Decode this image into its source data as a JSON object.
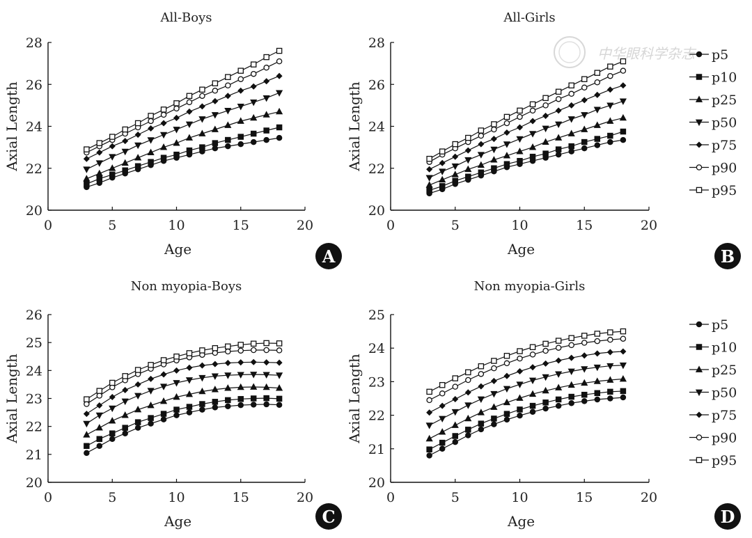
{
  "watermark": "中华眼科学杂志",
  "chart_data": [
    {
      "id": "A",
      "type": "line",
      "title": "All-Boys",
      "xlabel": "Age",
      "ylabel": "Axial Length",
      "xlim": [
        0,
        20
      ],
      "ylim": [
        20,
        28
      ],
      "xticks": [
        0,
        5,
        10,
        15,
        20
      ],
      "yticks": [
        20,
        22,
        24,
        26,
        28
      ],
      "x": [
        3,
        4,
        5,
        6,
        7,
        8,
        9,
        10,
        11,
        12,
        13,
        14,
        15,
        16,
        17,
        18
      ],
      "series": [
        {
          "name": "p5",
          "marker": "circle",
          "values": [
            21.1,
            21.3,
            21.55,
            21.75,
            21.95,
            22.15,
            22.35,
            22.5,
            22.65,
            22.8,
            22.95,
            23.05,
            23.15,
            23.25,
            23.35,
            23.45
          ]
        },
        {
          "name": "p10",
          "marker": "square",
          "values": [
            21.25,
            21.5,
            21.7,
            21.9,
            22.1,
            22.3,
            22.5,
            22.65,
            22.85,
            23.0,
            23.2,
            23.35,
            23.5,
            23.65,
            23.8,
            23.95
          ]
        },
        {
          "name": "p25",
          "marker": "triangle-up",
          "values": [
            21.5,
            21.75,
            22.0,
            22.25,
            22.5,
            22.75,
            23.0,
            23.2,
            23.45,
            23.65,
            23.85,
            24.05,
            24.25,
            24.4,
            24.55,
            24.7
          ]
        },
        {
          "name": "p50",
          "marker": "triangle-down",
          "values": [
            21.95,
            22.25,
            22.55,
            22.8,
            23.1,
            23.35,
            23.6,
            23.85,
            24.1,
            24.35,
            24.55,
            24.75,
            24.95,
            25.15,
            25.35,
            25.6
          ]
        },
        {
          "name": "p75",
          "marker": "diamond",
          "values": [
            22.45,
            22.75,
            23.05,
            23.3,
            23.6,
            23.9,
            24.15,
            24.4,
            24.7,
            24.95,
            25.2,
            25.45,
            25.7,
            25.9,
            26.15,
            26.4
          ]
        },
        {
          "name": "p90",
          "marker": "circle-open",
          "values": [
            22.75,
            23.05,
            23.35,
            23.65,
            23.95,
            24.25,
            24.55,
            24.85,
            25.15,
            25.45,
            25.7,
            25.95,
            26.25,
            26.5,
            26.8,
            27.1
          ]
        },
        {
          "name": "p95",
          "marker": "square-open",
          "values": [
            22.9,
            23.2,
            23.5,
            23.85,
            24.15,
            24.5,
            24.8,
            25.1,
            25.45,
            25.75,
            26.05,
            26.35,
            26.65,
            26.95,
            27.3,
            27.6
          ]
        }
      ]
    },
    {
      "id": "B",
      "type": "line",
      "title": "All-Girls",
      "xlabel": "Age",
      "ylabel": "Axial Length",
      "xlim": [
        0,
        20
      ],
      "ylim": [
        20,
        28
      ],
      "xticks": [
        0,
        5,
        10,
        15,
        20
      ],
      "yticks": [
        20,
        22,
        24,
        26,
        28
      ],
      "x": [
        3,
        4,
        5,
        6,
        7,
        8,
        9,
        10,
        11,
        12,
        13,
        14,
        15,
        16,
        17,
        18
      ],
      "series": [
        {
          "name": "p5",
          "marker": "circle",
          "values": [
            20.8,
            21.0,
            21.25,
            21.45,
            21.65,
            21.85,
            22.05,
            22.2,
            22.35,
            22.5,
            22.65,
            22.8,
            22.95,
            23.1,
            23.25,
            23.35
          ]
        },
        {
          "name": "p10",
          "marker": "square",
          "values": [
            20.95,
            21.15,
            21.4,
            21.6,
            21.8,
            22.0,
            22.2,
            22.35,
            22.55,
            22.7,
            22.9,
            23.05,
            23.25,
            23.4,
            23.55,
            23.75
          ]
        },
        {
          "name": "p25",
          "marker": "triangle-up",
          "values": [
            21.2,
            21.45,
            21.7,
            21.95,
            22.15,
            22.4,
            22.6,
            22.8,
            23.0,
            23.25,
            23.45,
            23.65,
            23.85,
            24.05,
            24.25,
            24.4
          ]
        },
        {
          "name": "p50",
          "marker": "triangle-down",
          "values": [
            21.55,
            21.85,
            22.1,
            22.4,
            22.65,
            22.9,
            23.15,
            23.4,
            23.65,
            23.9,
            24.1,
            24.35,
            24.55,
            24.8,
            25.0,
            25.2
          ]
        },
        {
          "name": "p75",
          "marker": "diamond",
          "values": [
            21.95,
            22.25,
            22.55,
            22.85,
            23.15,
            23.4,
            23.7,
            23.95,
            24.25,
            24.5,
            24.75,
            25.0,
            25.25,
            25.5,
            25.75,
            25.95
          ]
        },
        {
          "name": "p90",
          "marker": "circle-open",
          "values": [
            22.3,
            22.65,
            22.95,
            23.25,
            23.55,
            23.85,
            24.15,
            24.45,
            24.75,
            25.0,
            25.3,
            25.55,
            25.85,
            26.1,
            26.4,
            26.65
          ]
        },
        {
          "name": "p95",
          "marker": "square-open",
          "values": [
            22.45,
            22.8,
            23.15,
            23.45,
            23.8,
            24.1,
            24.45,
            24.75,
            25.05,
            25.35,
            25.65,
            25.95,
            26.25,
            26.55,
            26.85,
            27.1
          ]
        }
      ]
    },
    {
      "id": "C",
      "type": "line",
      "title": "Non myopia-Boys",
      "xlabel": "Age",
      "ylabel": "Axial Length",
      "xlim": [
        0,
        20
      ],
      "ylim": [
        20,
        26
      ],
      "xticks": [
        0,
        5,
        10,
        15,
        20
      ],
      "yticks": [
        20,
        21,
        22,
        23,
        24,
        25,
        26
      ],
      "x": [
        3,
        4,
        5,
        6,
        7,
        8,
        9,
        10,
        11,
        12,
        13,
        14,
        15,
        16,
        17,
        18
      ],
      "series": [
        {
          "name": "p5",
          "marker": "circle",
          "values": [
            21.05,
            21.3,
            21.55,
            21.75,
            21.95,
            22.1,
            22.25,
            22.4,
            22.5,
            22.6,
            22.68,
            22.72,
            22.76,
            22.78,
            22.79,
            22.77
          ]
        },
        {
          "name": "p10",
          "marker": "square",
          "values": [
            21.3,
            21.55,
            21.75,
            21.95,
            22.15,
            22.3,
            22.45,
            22.6,
            22.7,
            22.8,
            22.88,
            22.94,
            22.98,
            23.0,
            23.01,
            22.99
          ]
        },
        {
          "name": "p25",
          "marker": "triangle-up",
          "values": [
            21.7,
            21.95,
            22.2,
            22.4,
            22.6,
            22.75,
            22.9,
            23.05,
            23.15,
            23.25,
            23.32,
            23.37,
            23.4,
            23.41,
            23.4,
            23.37
          ]
        },
        {
          "name": "p50",
          "marker": "triangle-down",
          "values": [
            22.1,
            22.4,
            22.65,
            22.9,
            23.1,
            23.28,
            23.43,
            23.56,
            23.66,
            23.74,
            23.8,
            23.83,
            23.85,
            23.86,
            23.85,
            23.83
          ]
        },
        {
          "name": "p75",
          "marker": "diamond",
          "values": [
            22.45,
            22.75,
            23.05,
            23.3,
            23.5,
            23.7,
            23.86,
            24.0,
            24.1,
            24.18,
            24.23,
            24.27,
            24.29,
            24.3,
            24.29,
            24.28
          ]
        },
        {
          "name": "p90",
          "marker": "circle-open",
          "values": [
            22.8,
            23.1,
            23.4,
            23.65,
            23.87,
            24.06,
            24.22,
            24.36,
            24.47,
            24.56,
            24.63,
            24.68,
            24.71,
            24.73,
            24.73,
            24.72
          ]
        },
        {
          "name": "p95",
          "marker": "square-open",
          "values": [
            22.97,
            23.27,
            23.56,
            23.8,
            24.02,
            24.2,
            24.37,
            24.5,
            24.62,
            24.72,
            24.8,
            24.86,
            24.92,
            24.96,
            24.98,
            24.97
          ]
        }
      ]
    },
    {
      "id": "D",
      "type": "line",
      "title": "Non myopia-Girls",
      "xlabel": "Age",
      "ylabel": "Axial Length",
      "xlim": [
        0,
        20
      ],
      "ylim": [
        20,
        25
      ],
      "xticks": [
        0,
        5,
        10,
        15,
        20
      ],
      "yticks": [
        20,
        21,
        22,
        23,
        24,
        25
      ],
      "x": [
        3,
        4,
        5,
        6,
        7,
        8,
        9,
        10,
        11,
        12,
        13,
        14,
        15,
        16,
        17,
        18
      ],
      "series": [
        {
          "name": "p5",
          "marker": "circle",
          "values": [
            20.8,
            21.0,
            21.2,
            21.4,
            21.58,
            21.73,
            21.87,
            21.99,
            22.1,
            22.2,
            22.28,
            22.36,
            22.42,
            22.47,
            22.5,
            22.53
          ]
        },
        {
          "name": "p10",
          "marker": "square",
          "values": [
            20.98,
            21.18,
            21.38,
            21.57,
            21.75,
            21.9,
            22.04,
            22.17,
            22.28,
            22.38,
            22.47,
            22.55,
            22.61,
            22.66,
            22.7,
            22.72
          ]
        },
        {
          "name": "p25",
          "marker": "triangle-up",
          "values": [
            21.3,
            21.5,
            21.7,
            21.9,
            22.08,
            22.24,
            22.38,
            22.51,
            22.63,
            22.73,
            22.82,
            22.9,
            22.96,
            23.01,
            23.05,
            23.08
          ]
        },
        {
          "name": "p50",
          "marker": "triangle-down",
          "values": [
            21.7,
            21.9,
            22.1,
            22.3,
            22.48,
            22.64,
            22.79,
            22.92,
            23.04,
            23.14,
            23.23,
            23.31,
            23.38,
            23.43,
            23.47,
            23.49
          ]
        },
        {
          "name": "p75",
          "marker": "diamond",
          "values": [
            22.08,
            22.28,
            22.48,
            22.68,
            22.86,
            23.02,
            23.17,
            23.31,
            23.43,
            23.54,
            23.63,
            23.71,
            23.78,
            23.84,
            23.88,
            23.9
          ]
        },
        {
          "name": "p90",
          "marker": "circle-open",
          "values": [
            22.45,
            22.65,
            22.85,
            23.05,
            23.23,
            23.4,
            23.55,
            23.69,
            23.81,
            23.92,
            24.01,
            24.09,
            24.16,
            24.21,
            24.25,
            24.28
          ]
        },
        {
          "name": "p95",
          "marker": "square-open",
          "values": [
            22.7,
            22.9,
            23.1,
            23.28,
            23.46,
            23.62,
            23.77,
            23.91,
            24.03,
            24.13,
            24.22,
            24.3,
            24.37,
            24.43,
            24.47,
            24.5
          ]
        }
      ]
    }
  ]
}
